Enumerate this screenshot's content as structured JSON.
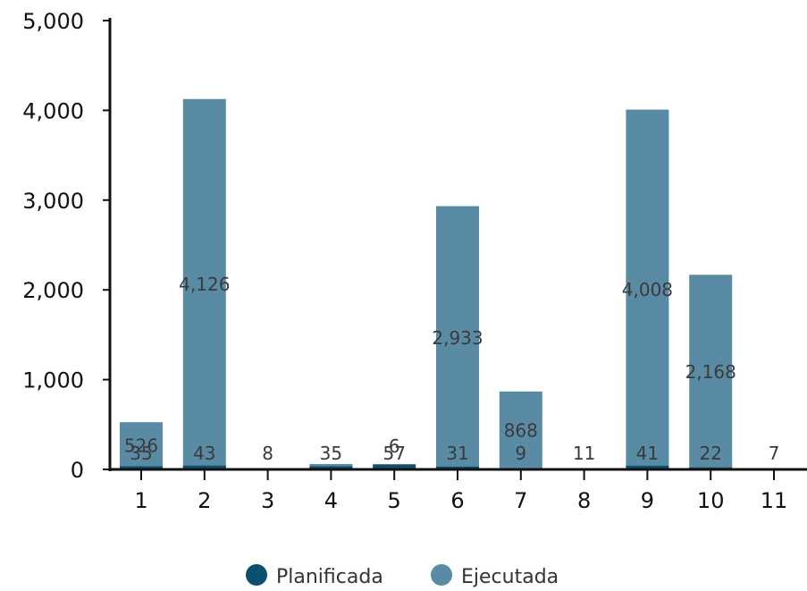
{
  "chart_data": {
    "type": "bar",
    "categories": [
      "1",
      "2",
      "3",
      "4",
      "5",
      "6",
      "7",
      "8",
      "9",
      "10",
      "11"
    ],
    "series": [
      {
        "name": "Planificada",
        "color": "#0d4f6e",
        "values": [
          35,
          43,
          8,
          35,
          57,
          31,
          9,
          11,
          41,
          22,
          7
        ]
      },
      {
        "name": "Ejecutada",
        "color": "#5a8ba5",
        "values": [
          526,
          4126,
          0,
          60,
          6,
          2933,
          868,
          0,
          4008,
          2168,
          0
        ]
      }
    ],
    "value_labels": {
      "Planificada": [
        "35",
        "43",
        "8",
        "35",
        "57",
        "31",
        "9",
        "11",
        "41",
        "22",
        "7"
      ],
      "Ejecutada": [
        "526",
        "4,126",
        "",
        "",
        "6",
        "2,933",
        "868",
        "",
        "4,008",
        "2,168",
        ""
      ]
    },
    "y_ticks": [
      "0",
      "1,000",
      "2,000",
      "3,000",
      "4,000",
      "5,000"
    ],
    "ylim": [
      0,
      5000
    ],
    "legend": {
      "position": "bottom-center",
      "items": [
        {
          "label": "Planificada",
          "color": "#0d4f6e"
        },
        {
          "label": "Ejecutada",
          "color": "#5a8ba5"
        }
      ]
    },
    "grid": false
  }
}
